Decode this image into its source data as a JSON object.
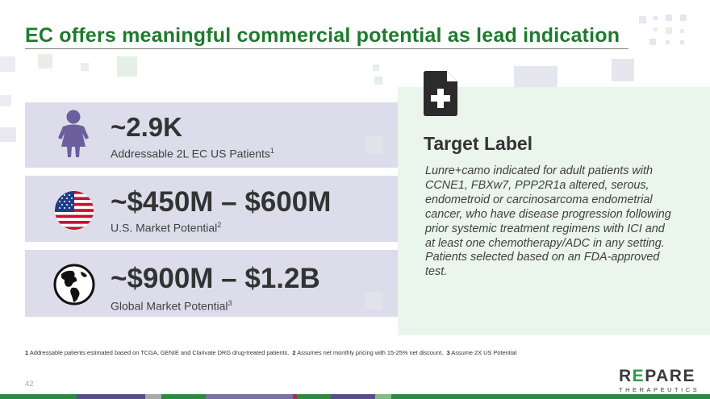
{
  "title": "EC offers meaningful commercial potential as lead indication",
  "cards": [
    {
      "metric": "~2.9K",
      "sub": "Addressable 2L EC US Patients",
      "sup": "1",
      "icon": "person-icon"
    },
    {
      "metric": "~$450M – $600M",
      "sub": "U.S. Market Potential",
      "sup": "2",
      "icon": "us-flag-icon"
    },
    {
      "metric": "~$900M – $1.2B",
      "sub": "Global Market Potential",
      "sup": "3",
      "icon": "globe-icon"
    }
  ],
  "target": {
    "title": "Target Label",
    "body": "Lunre+camo indicated for adult patients with CCNE1, FBXw7, PPP2R1a altered, serous, endometroid or carcinosarcoma endometrial cancer, who have disease progression following prior systemic treatment regimens with ICI and at least one chemotherapy/ADC in any setting. Patients selected based on an FDA-approved test.",
    "icon": "medical-document-icon"
  },
  "footnotes": [
    {
      "num": "1",
      "text": "Addressable patients estimated based on TCGA, GENIE and Clarivate DRG drug-treated patients."
    },
    {
      "num": "2",
      "text": "Assumes net monthly pricing  with 15-25% net discount."
    },
    {
      "num": "3",
      "text": "Assume 2X US Potential"
    }
  ],
  "page_number": "42",
  "logo": {
    "word_start": "R",
    "word_e": "E",
    "word_end": "PARE",
    "sub": "THERAPEUTICS"
  },
  "colors": {
    "title_green": "#1f7a2e",
    "card_bg": "#dddcea",
    "panel_bg": "#eaf5ec",
    "logo_green": "#2e9c47"
  }
}
